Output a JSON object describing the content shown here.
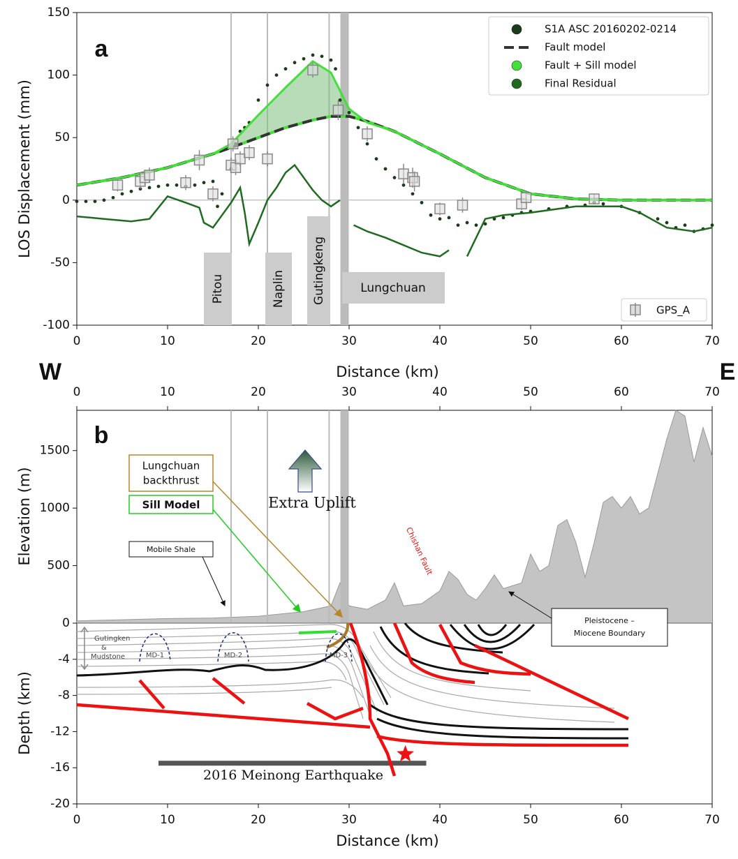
{
  "chart_data": [
    {
      "type": "line",
      "label": "a",
      "xlabel": "Distance (km)",
      "ylabel": "LOS Displacement (mm)",
      "xlim": [
        0,
        70
      ],
      "xticks": [
        0,
        10,
        20,
        30,
        40,
        50,
        60,
        70
      ],
      "ylim": [
        -100,
        150
      ],
      "yticks": [
        -100,
        -50,
        0,
        50,
        100,
        150
      ],
      "reference_line": 0,
      "faults": [
        {
          "name": "Pitou",
          "x": 17
        },
        {
          "name": "Naplin",
          "x": 21
        },
        {
          "name": "Gutingkeng",
          "x": 27.8
        },
        {
          "name": "Lungchuan",
          "x": 29.5
        }
      ],
      "series": [
        {
          "name": "S1A ASC 20160202-0214",
          "color": "#1b3b1b",
          "style": "points",
          "x": [
            0,
            1,
            2,
            3,
            4,
            5,
            6,
            7,
            8,
            9,
            10,
            11,
            12,
            13,
            14,
            15,
            15.5,
            16,
            17,
            17.5,
            18,
            18.5,
            19,
            20,
            21,
            22,
            23,
            24,
            25,
            26,
            27,
            28,
            28.5,
            29,
            30,
            31,
            32,
            33,
            34,
            35,
            36,
            37,
            38,
            39,
            40,
            41,
            42,
            43,
            44,
            45,
            46,
            47,
            48,
            49,
            50,
            52,
            54,
            56,
            57,
            58,
            60,
            62,
            64,
            65,
            66,
            67,
            68,
            69,
            70
          ],
          "values": [
            -1,
            -1,
            -1,
            0,
            2,
            5,
            7,
            9,
            10,
            11,
            12,
            12,
            11,
            12,
            14,
            15,
            -5,
            5,
            25,
            45,
            55,
            58,
            62,
            80,
            92,
            100,
            105,
            110,
            113,
            116,
            115,
            112,
            105,
            80,
            70,
            58,
            45,
            33,
            25,
            18,
            12,
            5,
            -2,
            -12,
            -15,
            -14,
            -20,
            -18,
            -20,
            -19,
            -15,
            -14,
            -12,
            -10,
            -9,
            -7,
            -5,
            -4,
            -2,
            -3,
            -5,
            -10,
            -15,
            -18,
            -22,
            -20,
            -25,
            -23,
            -20
          ]
        },
        {
          "name": "Fault model",
          "color": "#333333",
          "style": "dashed",
          "x": [
            0,
            5,
            10,
            15,
            17,
            20,
            23,
            26,
            28,
            30,
            32,
            35,
            40,
            45,
            50,
            55,
            60,
            65,
            70
          ],
          "values": [
            12,
            18,
            26,
            37,
            42,
            50,
            58,
            64,
            67,
            67,
            63,
            55,
            37,
            18,
            5,
            1,
            0,
            0,
            0
          ]
        },
        {
          "name": "Fault + Sill model",
          "color": "#44e03a",
          "style": "solid",
          "x": [
            0,
            5,
            10,
            15,
            17,
            20,
            23,
            26,
            28,
            30,
            32,
            35,
            40,
            45,
            50,
            55,
            60,
            65,
            70
          ],
          "values": [
            12,
            18,
            26,
            37,
            45,
            68,
            90,
            111,
            102,
            73,
            62,
            55,
            37,
            18,
            5,
            1,
            0,
            0,
            0
          ]
        },
        {
          "name": "Final Residual",
          "color": "#1f6b1f",
          "style": "line",
          "x": [
            0,
            3,
            6,
            8,
            10,
            12,
            13.5,
            14,
            15,
            16,
            17,
            18,
            18.5,
            19,
            20,
            21,
            22,
            23,
            24,
            25,
            26,
            27,
            28,
            29,
            30,
            30.5,
            32,
            34,
            36,
            38,
            40,
            41,
            42,
            43,
            45,
            47,
            50,
            55,
            60,
            62,
            65,
            68,
            70
          ],
          "values": [
            -13,
            -15,
            -17,
            -15,
            3,
            -2,
            -6,
            -18,
            -22,
            -12,
            -2,
            10,
            -10,
            -35,
            -18,
            0,
            10,
            22,
            28,
            18,
            8,
            0,
            -5,
            0,
            null,
            -20,
            -25,
            -30,
            -36,
            -42,
            -45,
            -40,
            null,
            -45,
            -15,
            -12,
            -10,
            -5,
            -5,
            -10,
            -22,
            -25,
            -22
          ]
        },
        {
          "name": "GPS_A",
          "color": "#888888",
          "style": "errorbar",
          "x": [
            4.5,
            7,
            7.5,
            8,
            12,
            13.5,
            15,
            17,
            17.2,
            17.5,
            18,
            19,
            21,
            26,
            28.8,
            32,
            36,
            37,
            37.2,
            40,
            42.5,
            49,
            49.5,
            57
          ],
          "values": [
            12,
            15,
            18,
            20,
            14,
            32,
            5,
            28,
            45,
            26,
            33,
            38,
            33,
            104,
            72,
            53,
            21,
            18,
            15,
            -7,
            -4,
            -3,
            2,
            1
          ],
          "errors": [
            5,
            6,
            6,
            6,
            6,
            8,
            6,
            6,
            6,
            6,
            6,
            6,
            6,
            6,
            8,
            6,
            8,
            8,
            8,
            5,
            6,
            5,
            5,
            4
          ]
        }
      ]
    },
    {
      "type": "area",
      "label": "b",
      "ends": [
        "W",
        "E"
      ],
      "ylabel": "Elevation (m)",
      "color": "#c4c4c4",
      "xlim": [
        0,
        70
      ],
      "xticks": [
        0,
        10,
        20,
        30,
        40,
        50,
        60,
        70
      ],
      "ylim": [
        0,
        1850
      ],
      "yticks": [
        500,
        1000,
        1500
      ],
      "x": [
        0,
        5,
        10,
        15,
        20,
        25,
        28,
        29,
        30,
        32,
        34,
        35,
        36,
        38,
        40,
        41,
        42,
        43,
        44,
        45,
        46,
        47,
        49,
        50,
        51,
        52,
        53,
        54,
        55,
        56,
        57,
        58,
        59,
        60,
        61,
        62,
        63,
        64,
        65,
        66,
        67,
        68,
        69,
        70
      ],
      "values": [
        20,
        30,
        40,
        45,
        60,
        100,
        150,
        350,
        150,
        120,
        200,
        350,
        150,
        170,
        280,
        450,
        380,
        250,
        200,
        300,
        420,
        300,
        350,
        600,
        450,
        500,
        850,
        900,
        700,
        400,
        700,
        1050,
        1100,
        1000,
        1100,
        950,
        1000,
        1300,
        1600,
        1850,
        1800,
        1400,
        1700,
        1450
      ]
    },
    {
      "type": "section",
      "xlabel": "Distance (km)",
      "ylabel": "Depth (km)",
      "xlim": [
        0,
        70
      ],
      "xticks": [
        0,
        10,
        20,
        30,
        40,
        50,
        60,
        70
      ],
      "ylim": [
        -20,
        0
      ],
      "yticks": [
        0,
        -4,
        -8,
        -12,
        -16,
        -20
      ],
      "annotations": {
        "backthrust": [
          "Lungchuan",
          "backthrust"
        ],
        "sill": "Sill Model",
        "shale": "Mobile Shale",
        "uplift": "Extra Uplift",
        "chishan": "Chishan Fault",
        "formation": [
          "Gutingken",
          "&",
          "Mudstone"
        ],
        "boundary": [
          "Pleistocene –",
          "Miocene Boundary"
        ],
        "domes": [
          "MD-1",
          "MD-2",
          "MD-3"
        ]
      },
      "earthquake": {
        "label": "2016 Meinong Earthquake",
        "x": 36.2,
        "depth": -14.5,
        "rupture": [
          9,
          38.5
        ],
        "rupture_depth": -15.5
      }
    }
  ]
}
